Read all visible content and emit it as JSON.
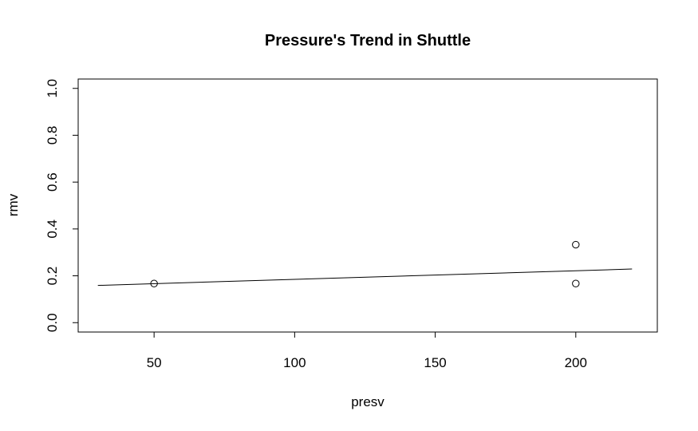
{
  "chart_data": {
    "type": "scatter",
    "title": "Pressure's Trend in Shuttle",
    "xlabel": "presv",
    "ylabel": "rmv",
    "xlim": [
      23,
      229
    ],
    "ylim": [
      -0.04,
      1.04
    ],
    "xticks": [
      50,
      100,
      150,
      200
    ],
    "xtick_labels": [
      "50",
      "100",
      "150",
      "200"
    ],
    "yticks": [
      0.0,
      0.2,
      0.4,
      0.6,
      0.8,
      1.0
    ],
    "ytick_labels": [
      "0.0",
      "0.2",
      "0.4",
      "0.6",
      "0.8",
      "1.0"
    ],
    "grid": false,
    "points": [
      {
        "x": 50,
        "y": 0.167
      },
      {
        "x": 200,
        "y": 0.333
      },
      {
        "x": 200,
        "y": 0.167
      }
    ],
    "trend_line": {
      "x": [
        30,
        220
      ],
      "y": [
        0.159,
        0.229
      ]
    }
  }
}
